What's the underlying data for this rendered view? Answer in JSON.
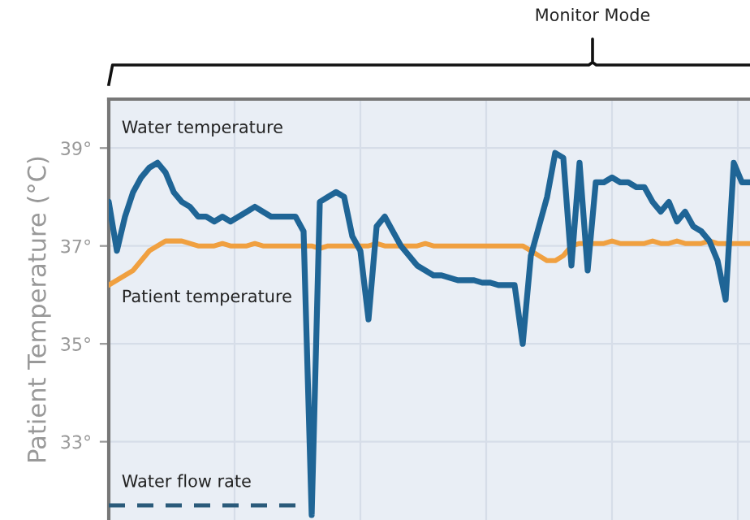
{
  "chart_data": {
    "type": "line",
    "ylabel": "Patient Temperature (°C)",
    "annotations": [
      "Monitor Mode"
    ],
    "categories": [
      null,
      null,
      null,
      null,
      null,
      null,
      null,
      null,
      null,
      null,
      null,
      null,
      null,
      null,
      null,
      null,
      null,
      null,
      null,
      null,
      null,
      null,
      null,
      null,
      null,
      null,
      null,
      null,
      null,
      null,
      null,
      null,
      null,
      null,
      null,
      null,
      null,
      null,
      null,
      null,
      null,
      null,
      null,
      null,
      null,
      null,
      null,
      null,
      null,
      null,
      null,
      null,
      null,
      null,
      null,
      null,
      null,
      null,
      null,
      null,
      null,
      null,
      null,
      null,
      null,
      null,
      null,
      null,
      null,
      null,
      null,
      null,
      null,
      null,
      null,
      null,
      null,
      null,
      null,
      null
    ],
    "series": [
      {
        "name": "Water temperature",
        "color": "#1f6596",
        "values": [
          37.9,
          36.9,
          37.6,
          38.1,
          38.4,
          38.6,
          38.7,
          38.5,
          38.1,
          37.9,
          37.8,
          37.6,
          37.6,
          37.5,
          37.6,
          37.5,
          37.6,
          37.7,
          37.8,
          37.7,
          37.6,
          37.6,
          37.6,
          37.6,
          37.3,
          31.5,
          37.9,
          38.0,
          38.1,
          38.0,
          37.2,
          36.9,
          35.5,
          37.4,
          37.6,
          37.3,
          37.0,
          36.8,
          36.6,
          36.5,
          36.4,
          36.4,
          36.35,
          36.3,
          36.3,
          36.3,
          36.25,
          36.25,
          36.2,
          36.2,
          36.2,
          35.0,
          36.8,
          37.4,
          38.0,
          38.9,
          38.8,
          36.6,
          38.7,
          36.5,
          38.3,
          38.3,
          38.4,
          38.3,
          38.3,
          38.2,
          38.2,
          37.9,
          37.7,
          37.9,
          37.5,
          37.7,
          37.4,
          37.3,
          37.1,
          36.7,
          35.9,
          38.7,
          38.3,
          38.3
        ]
      },
      {
        "name": "Patient temperature",
        "color": "#f0a040",
        "values": [
          36.2,
          36.3,
          36.4,
          36.5,
          36.7,
          36.9,
          37.0,
          37.1,
          37.1,
          37.1,
          37.05,
          37.0,
          37.0,
          37.0,
          37.05,
          37.0,
          37.0,
          37.0,
          37.05,
          37.0,
          37.0,
          37.0,
          37.0,
          37.0,
          37.0,
          37.0,
          36.95,
          37.0,
          37.0,
          37.0,
          37.0,
          37.0,
          37.0,
          37.05,
          37.0,
          37.0,
          37.0,
          37.0,
          37.0,
          37.05,
          37.0,
          37.0,
          37.0,
          37.0,
          37.0,
          37.0,
          37.0,
          37.0,
          37.0,
          37.0,
          37.0,
          37.0,
          36.9,
          36.8,
          36.7,
          36.7,
          36.8,
          37.0,
          37.05,
          37.05,
          37.05,
          37.05,
          37.1,
          37.05,
          37.05,
          37.05,
          37.05,
          37.1,
          37.05,
          37.05,
          37.1,
          37.05,
          37.05,
          37.05,
          37.1,
          37.05,
          37.05,
          37.05,
          37.05,
          37.05
        ]
      },
      {
        "name": "Water flow rate",
        "color": "#2a5a7a",
        "line_style": "dashed",
        "values": [
          31.7,
          31.7,
          31.7,
          31.7,
          31.7,
          31.7,
          31.7,
          31.7,
          31.7,
          31.7,
          31.7,
          31.7,
          31.7,
          31.7,
          31.7,
          31.7,
          31.7,
          31.7,
          31.7,
          31.7,
          31.7,
          31.7,
          31.7,
          31.7,
          31.7,
          null,
          null,
          null,
          null,
          null,
          null,
          null,
          null,
          null,
          null,
          null,
          null,
          null,
          null,
          null,
          null,
          null,
          null,
          null,
          null,
          null,
          null,
          null,
          null,
          null,
          null,
          null,
          null,
          null,
          null,
          null,
          null,
          null,
          null,
          null,
          null,
          null,
          null,
          null,
          null,
          null,
          null,
          null,
          null,
          null,
          null,
          null,
          null,
          null,
          null,
          null,
          null,
          null,
          null,
          null
        ]
      }
    ],
    "ylim": [
      31.4,
      40.0
    ],
    "yticks": [
      {
        "value": 33,
        "label": "33°"
      },
      {
        "value": 35,
        "label": "35°"
      },
      {
        "value": 37,
        "label": "37°"
      },
      {
        "value": 39,
        "label": "39°"
      }
    ],
    "grid": true,
    "tick_labels": "y",
    "line_style": "solid",
    "marker": "none"
  }
}
